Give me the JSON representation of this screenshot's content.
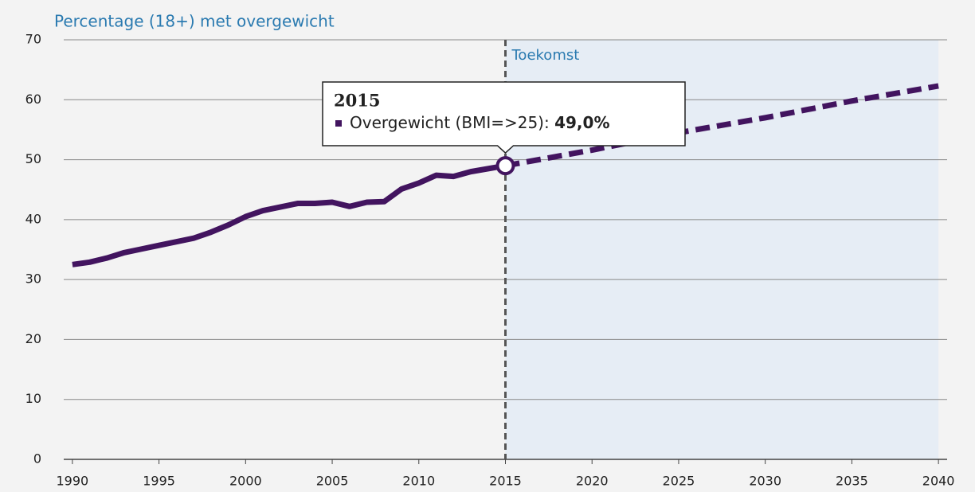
{
  "chart_data": {
    "type": "line",
    "title": "Percentage (18+) met overgewicht",
    "xlim": [
      1989.5,
      2040.5
    ],
    "xticks": [
      1990,
      1995,
      2000,
      2005,
      2010,
      2015,
      2020,
      2025,
      2030,
      2035,
      2040
    ],
    "ylim": [
      0,
      70
    ],
    "yticks": [
      0,
      10,
      20,
      30,
      40,
      50,
      60,
      70
    ],
    "grid": true,
    "annotation": {
      "text": "Toekomst",
      "x": 2015,
      "color": "#e6edf5"
    },
    "series": [
      {
        "name": "Overgewicht (BMI=>25)",
        "color": "#42145f",
        "dashed": false,
        "x": [
          1990,
          1991,
          1992,
          1993,
          1994,
          1995,
          1996,
          1997,
          1998,
          1999,
          2000,
          2001,
          2002,
          2003,
          2004,
          2005,
          2006,
          2007,
          2008,
          2009,
          2010,
          2011,
          2012,
          2013,
          2014,
          2015
        ],
        "values": [
          32.5,
          32.9,
          33.6,
          34.5,
          35.1,
          35.7,
          36.3,
          36.9,
          37.9,
          39.1,
          40.5,
          41.5,
          42.1,
          42.7,
          42.7,
          42.9,
          42.2,
          42.9,
          43.0,
          45.1,
          46.1,
          47.4,
          47.2,
          48.0,
          48.5,
          49.0
        ],
        "value_labels": [
          null,
          null,
          null,
          null,
          null,
          null,
          null,
          null,
          null,
          null,
          null,
          null,
          null,
          null,
          null,
          null,
          null,
          null,
          null,
          null,
          null,
          null,
          null,
          null,
          null,
          "49,0%"
        ]
      },
      {
        "color": "#42145f",
        "dashed": true,
        "x": [
          2015,
          2020,
          2025,
          2030,
          2035,
          2040
        ],
        "values": [
          49.0,
          51.6,
          54.5,
          57.0,
          59.8,
          62.3
        ]
      }
    ]
  }
}
